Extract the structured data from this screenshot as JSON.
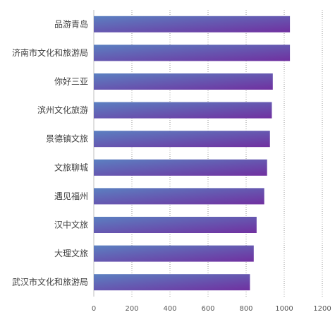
{
  "chart_data": {
    "type": "bar",
    "orientation": "horizontal",
    "categories": [
      "品游青岛",
      "济南市文化和旅游局",
      "你好三亚",
      "滨州文化旅游",
      "景德镇文旅",
      "文旅聊城",
      "遇见福州",
      "汉中文旅",
      "大理文旅",
      "武汉市文化和旅游局"
    ],
    "values": [
      1030,
      1030,
      940,
      935,
      925,
      910,
      895,
      855,
      840,
      820
    ],
    "xlim": [
      0,
      1200
    ],
    "xticks": [
      0,
      200,
      400,
      600,
      800,
      1000,
      1200
    ],
    "title": "",
    "xlabel": "",
    "ylabel": "",
    "grid": "vertical dotted",
    "legend": "none",
    "colors": {
      "bar_start": "#5b80c1",
      "bar_end": "#7030a0"
    }
  }
}
